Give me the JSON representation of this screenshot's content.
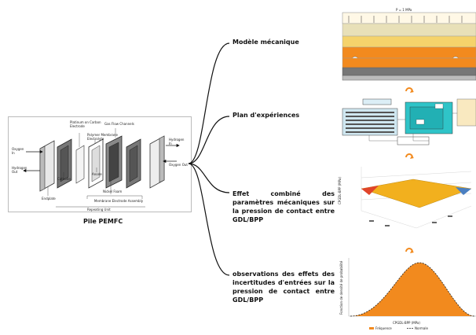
{
  "left_caption": "Pile PEMFC",
  "branches": [
    {
      "label": "Modèle mécanique"
    },
    {
      "label": "Plan d'expériences"
    },
    {
      "label": "Effet combiné des paramètres mécaniques sur la pression de contact entre GDL/BPP"
    },
    {
      "label": "observations des effets des incertitudes d'entrées sur la pression de contact entre GDL/BPP"
    }
  ],
  "pemfc_labels": {
    "oxygen_in": "Oxygen In",
    "hydrogen_out": "Hydrogen Out",
    "endplate": "Endplate",
    "cathode": "Cathode",
    "platinum": "Platinum on Carbon Electrode",
    "polymer": "Polymer Membrane Electrolyte",
    "anode": "Anode",
    "gas_flow": "Gas Flow Channels",
    "nickel_foam": "Nickel Foam",
    "mea": "Membrane Electrode Assembly",
    "repeating": "Repeating Unit",
    "hydrogen_in": "Hydrogen In",
    "oxygen_out": "Oxygen Out"
  },
  "mech_model": {
    "pressure": "P = 1 MPa"
  },
  "chart3d": {
    "ylabel": "CPGDL-BPP (MPa)"
  },
  "chart_data": {
    "type": "area",
    "xlabel": "CPGDL-BPP (MPa)",
    "ylabel": "Fonction de densité de probabilité",
    "series": [
      {
        "name": "Fréquence"
      },
      {
        "name": "Normale"
      }
    ]
  }
}
